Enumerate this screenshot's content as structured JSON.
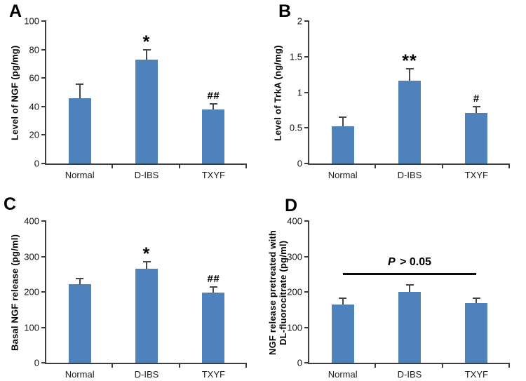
{
  "figure": {
    "bar_color": "#4f81bd",
    "error_color": "#474747",
    "axis_color": "#3e3e3e",
    "background": "#ffffff"
  },
  "chart_data": [
    {
      "type": "bar",
      "panel": "A",
      "ylabel": "Level of NGF (pg/mg)",
      "xlabel": "",
      "categories": [
        "Normal",
        "D-IBS",
        "TXYF"
      ],
      "values": [
        46,
        73,
        38
      ],
      "errors": [
        9,
        6.5,
        3.5
      ],
      "sig": [
        "",
        "*",
        "##"
      ],
      "ylim": [
        0,
        100
      ],
      "ytick_step": 20,
      "grid": false,
      "legend": false
    },
    {
      "type": "bar",
      "panel": "B",
      "ylabel": "Level of TrkA (ng/mg)",
      "xlabel": "",
      "categories": [
        "Normal",
        "D-IBS",
        "TXYF"
      ],
      "values": [
        0.52,
        1.16,
        0.71
      ],
      "errors": [
        0.12,
        0.16,
        0.08
      ],
      "sig": [
        "",
        "**",
        "#"
      ],
      "ylim": [
        0,
        2
      ],
      "ytick_step": 0.5,
      "grid": false,
      "legend": false
    },
    {
      "type": "bar",
      "panel": "C",
      "ylabel": "Basal NGF release (pg/ml)",
      "xlabel": "",
      "categories": [
        "Normal",
        "D-IBS",
        "TXYF"
      ],
      "values": [
        222,
        266,
        198
      ],
      "errors": [
        13,
        17,
        13
      ],
      "sig": [
        "",
        "*",
        "##"
      ],
      "ylim": [
        0,
        400
      ],
      "ytick_step": 100,
      "grid": false,
      "legend": false
    },
    {
      "type": "bar",
      "panel": "D",
      "ylabel": "NGF release pretreated with\nDL-fluorocitrate (pg/ml)",
      "xlabel": "",
      "categories": [
        "Normal",
        "D-IBS",
        "TXYF"
      ],
      "values": [
        165,
        201,
        168
      ],
      "errors": [
        15,
        16,
        13
      ],
      "sig": [
        "",
        "",
        ""
      ],
      "ylim": [
        0,
        400
      ],
      "ytick_step": 100,
      "grid": false,
      "legend": false,
      "annotation": {
        "text_italic": "P",
        "text_rest": "> 0.05",
        "line_y": 248,
        "from_bar": 0,
        "to_bar": 2
      }
    }
  ]
}
